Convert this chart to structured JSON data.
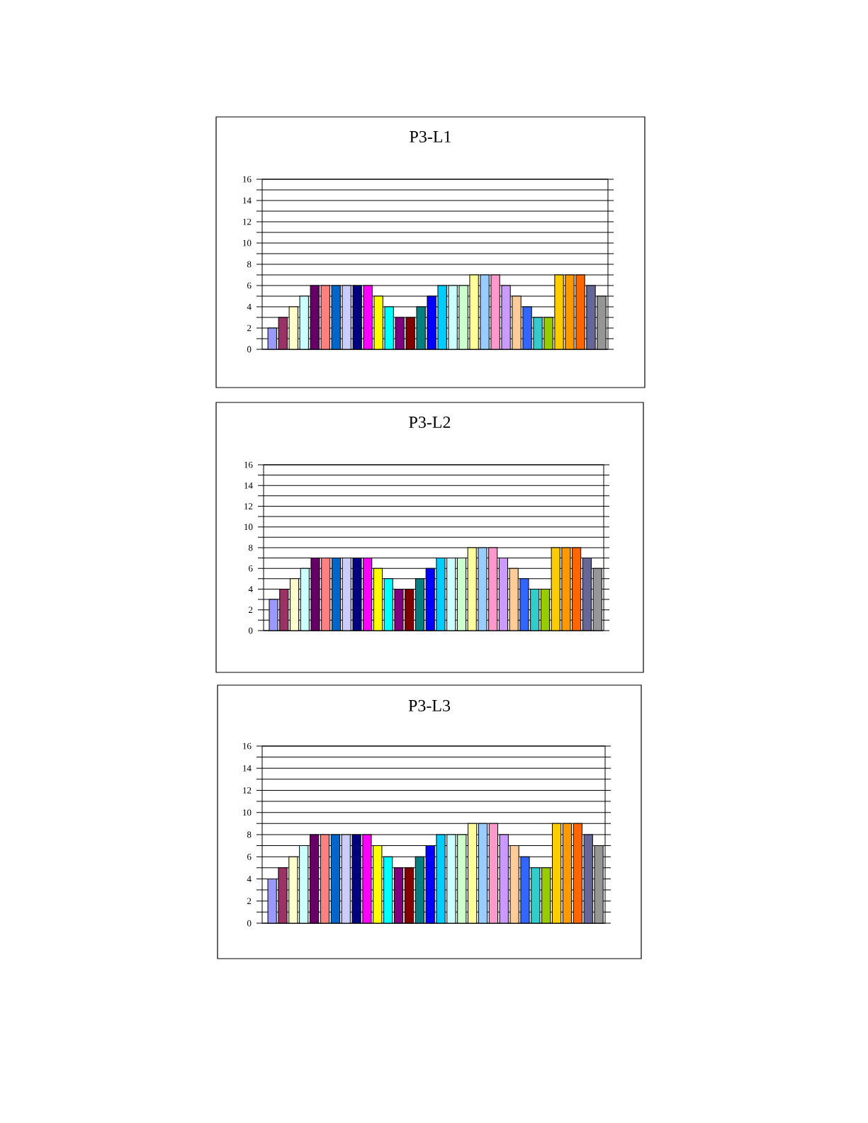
{
  "chart_data": [
    {
      "type": "bar",
      "title": "P3-L1",
      "categories": [
        null,
        null,
        null,
        null,
        null,
        null,
        null,
        null,
        null,
        null,
        null,
        null,
        null,
        null,
        null,
        null,
        null,
        null,
        null,
        null,
        null,
        null,
        null,
        null,
        null,
        null,
        null,
        null,
        null,
        null,
        null,
        null
      ],
      "values": [
        2,
        3,
        4,
        5,
        6,
        6,
        6,
        6,
        6,
        6,
        5,
        4,
        3,
        3,
        4,
        5,
        6,
        6,
        6,
        7,
        7,
        7,
        6,
        5,
        4,
        3,
        3,
        7,
        7,
        7,
        6,
        5
      ],
      "colors": [
        "#9999ff",
        "#993366",
        "#ffffcc",
        "#ccffff",
        "#660066",
        "#ff8080",
        "#0066cc",
        "#ccccff",
        "#000080",
        "#ff00ff",
        "#ffff00",
        "#00ffff",
        "#800080",
        "#800000",
        "#008080",
        "#0000ff",
        "#00ccff",
        "#ccffff",
        "#ccffcc",
        "#ffff99",
        "#99ccff",
        "#ff99cc",
        "#cc99ff",
        "#ffcc99",
        "#3366ff",
        "#33cccc",
        "#99cc00",
        "#ffcc00",
        "#ff9900",
        "#ff6600",
        "#666699",
        "#969696"
      ],
      "ylim": [
        0,
        16
      ],
      "yticks": [
        0,
        {
          "value": 1,
          "label": null
        },
        2,
        {
          "value": 3,
          "label": null
        },
        4,
        {
          "value": 5,
          "label": null
        },
        6,
        {
          "value": 7,
          "label": null
        },
        8,
        {
          "value": 9,
          "label": null
        },
        10,
        {
          "value": 11,
          "label": null
        },
        12,
        {
          "value": 13,
          "label": null
        },
        14,
        {
          "value": 15,
          "label": null
        },
        16
      ],
      "grid": "y"
    },
    {
      "type": "bar",
      "title": "P3-L2",
      "categories": [
        null,
        null,
        null,
        null,
        null,
        null,
        null,
        null,
        null,
        null,
        null,
        null,
        null,
        null,
        null,
        null,
        null,
        null,
        null,
        null,
        null,
        null,
        null,
        null,
        null,
        null,
        null,
        null,
        null,
        null,
        null,
        null
      ],
      "values": [
        3,
        4,
        5,
        6,
        7,
        7,
        7,
        7,
        7,
        7,
        6,
        5,
        4,
        4,
        5,
        6,
        7,
        7,
        7,
        8,
        8,
        8,
        7,
        6,
        5,
        4,
        4,
        8,
        8,
        8,
        7,
        6
      ],
      "colors": [
        "#9999ff",
        "#993366",
        "#ffffcc",
        "#ccffff",
        "#660066",
        "#ff8080",
        "#0066cc",
        "#ccccff",
        "#000080",
        "#ff00ff",
        "#ffff00",
        "#00ffff",
        "#800080",
        "#800000",
        "#008080",
        "#0000ff",
        "#00ccff",
        "#ccffff",
        "#ccffcc",
        "#ffff99",
        "#99ccff",
        "#ff99cc",
        "#cc99ff",
        "#ffcc99",
        "#3366ff",
        "#33cccc",
        "#99cc00",
        "#ffcc00",
        "#ff9900",
        "#ff6600",
        "#666699",
        "#969696"
      ],
      "ylim": [
        0,
        16
      ],
      "yticks": [
        0,
        {
          "value": 1,
          "label": null
        },
        2,
        {
          "value": 3,
          "label": null
        },
        4,
        {
          "value": 5,
          "label": null
        },
        6,
        {
          "value": 7,
          "label": null
        },
        8,
        {
          "value": 9,
          "label": null
        },
        10,
        {
          "value": 11,
          "label": null
        },
        12,
        {
          "value": 13,
          "label": null
        },
        14,
        {
          "value": 15,
          "label": null
        },
        16
      ],
      "grid": "y"
    },
    {
      "type": "bar",
      "title": "P3-L3",
      "categories": [
        null,
        null,
        null,
        null,
        null,
        null,
        null,
        null,
        null,
        null,
        null,
        null,
        null,
        null,
        null,
        null,
        null,
        null,
        null,
        null,
        null,
        null,
        null,
        null,
        null,
        null,
        null,
        null,
        null,
        null,
        null,
        null
      ],
      "values": [
        4,
        5,
        6,
        7,
        8,
        8,
        8,
        8,
        8,
        8,
        7,
        6,
        5,
        5,
        6,
        7,
        8,
        8,
        8,
        9,
        9,
        9,
        8,
        7,
        6,
        5,
        5,
        9,
        9,
        9,
        8,
        7
      ],
      "colors": [
        "#9999ff",
        "#993366",
        "#ffffcc",
        "#ccffff",
        "#660066",
        "#ff8080",
        "#0066cc",
        "#ccccff",
        "#000080",
        "#ff00ff",
        "#ffff00",
        "#00ffff",
        "#800080",
        "#800000",
        "#008080",
        "#0000ff",
        "#00ccff",
        "#ccffff",
        "#ccffcc",
        "#ffff99",
        "#99ccff",
        "#ff99cc",
        "#cc99ff",
        "#ffcc99",
        "#3366ff",
        "#33cccc",
        "#99cc00",
        "#ffcc00",
        "#ff9900",
        "#ff6600",
        "#666699",
        "#969696"
      ],
      "ylim": [
        0,
        16
      ],
      "yticks": [
        0,
        {
          "value": 1,
          "label": null
        },
        2,
        {
          "value": 3,
          "label": null
        },
        4,
        {
          "value": 5,
          "label": null
        },
        6,
        {
          "value": 7,
          "label": null
        },
        8,
        {
          "value": 9,
          "label": null
        },
        10,
        {
          "value": 11,
          "label": null
        },
        12,
        {
          "value": 13,
          "label": null
        },
        14,
        {
          "value": 15,
          "label": null
        },
        16
      ],
      "grid": "y"
    }
  ]
}
